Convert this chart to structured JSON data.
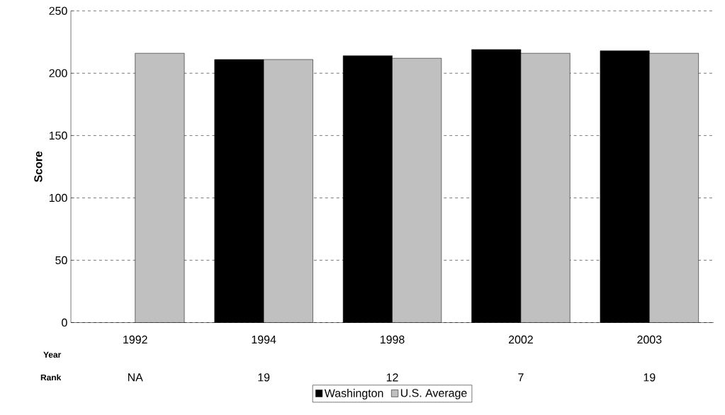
{
  "chart_data": {
    "type": "bar",
    "ylabel": "Score",
    "xlabel": "Year",
    "categories": [
      "1992",
      "1994",
      "1998",
      "2002",
      "2003"
    ],
    "series": [
      {
        "name": "Washington",
        "color": "#000000",
        "values": [
          null,
          211,
          214,
          219,
          218
        ]
      },
      {
        "name": "U.S. Average",
        "color": "#c0c0c0",
        "values": [
          216,
          211,
          212,
          216,
          216
        ]
      }
    ],
    "ylim": [
      0,
      250
    ],
    "yticks": [
      0,
      50,
      100,
      150,
      200,
      250
    ],
    "grid": "y",
    "legend": "bottom",
    "annotations": [
      "Rank",
      "NA",
      "19",
      "12",
      "7",
      "19"
    ]
  }
}
